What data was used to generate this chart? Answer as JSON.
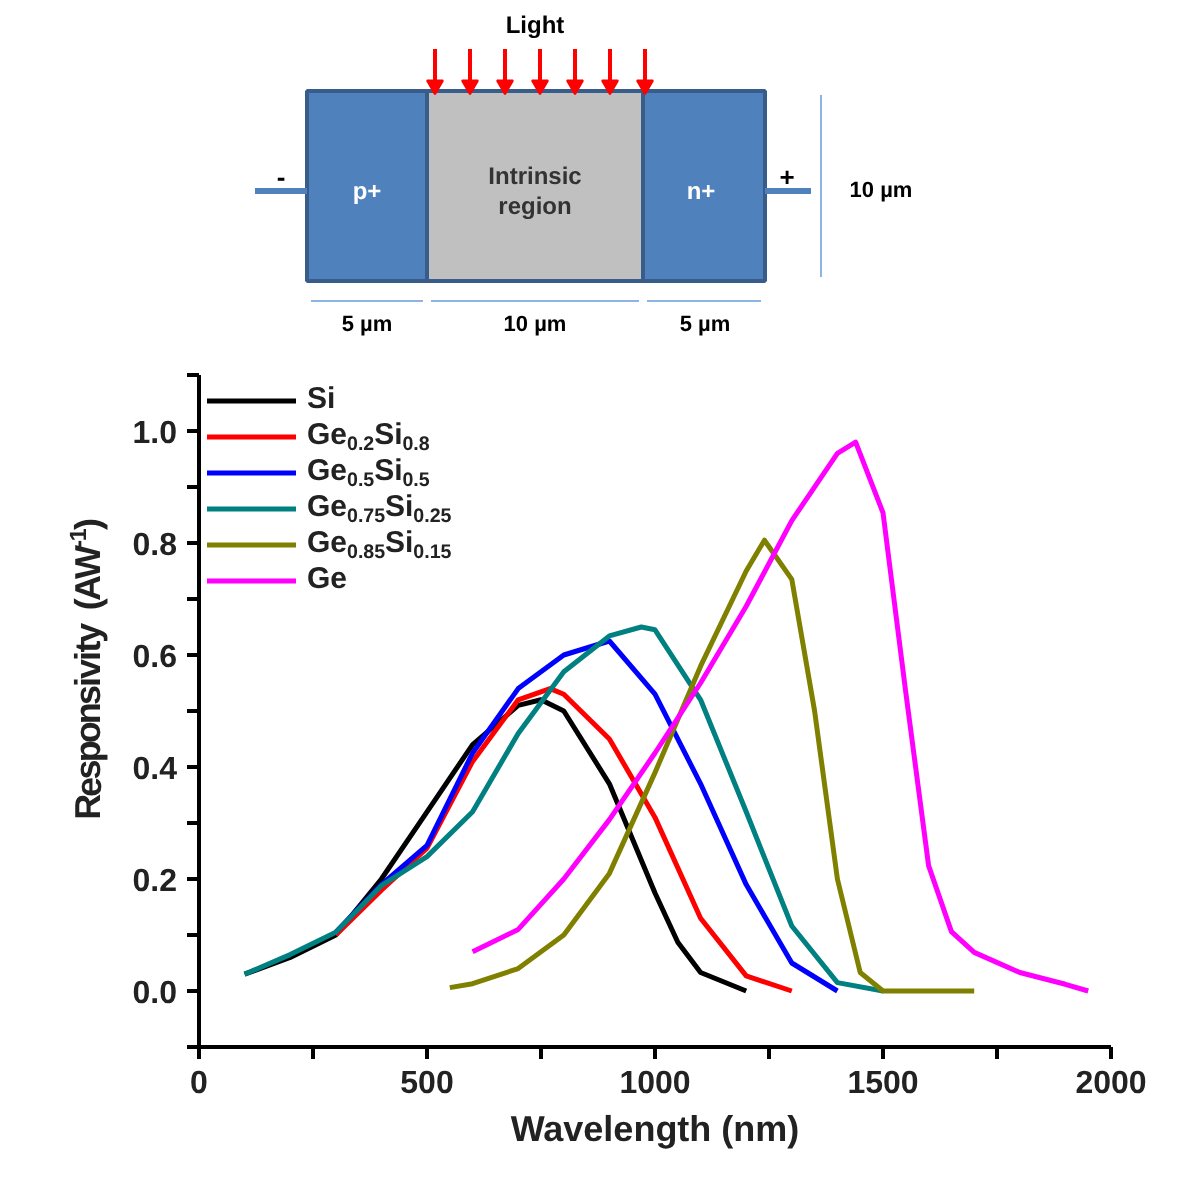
{
  "chart_data": {
    "type": "line",
    "xlabel": "Wavelength (nm)",
    "ylabel": "Responsivity (AW$^{-1}$)",
    "xlim": [
      0,
      2000
    ],
    "ylim": [
      -0.1,
      1.1
    ],
    "xticks": [
      0,
      {
        "value": 250,
        "label": null
      },
      500,
      {
        "value": 750,
        "label": null
      },
      1000,
      {
        "value": 1250,
        "label": null
      },
      1500,
      {
        "value": 1750,
        "label": null
      },
      2000
    ],
    "yticks": [
      {
        "value": -0.1,
        "label": null
      },
      {
        "value": 0,
        "label": "0.0"
      },
      {
        "value": 0.1,
        "label": null
      },
      {
        "value": 0.2,
        "label": "0.2"
      },
      {
        "value": 0.3,
        "label": null
      },
      {
        "value": 0.4,
        "label": "0.4"
      },
      {
        "value": 0.5,
        "label": null
      },
      {
        "value": 0.6,
        "label": "0.6"
      },
      {
        "value": 0.7,
        "label": null
      },
      {
        "value": 0.8,
        "label": "0.8"
      },
      {
        "value": 0.9,
        "label": null
      },
      {
        "value": 1.0,
        "label": "1.0"
      },
      {
        "value": 1.1,
        "label": null
      }
    ],
    "grid": false,
    "legend": "top left",
    "line_style": "solid",
    "annotations": [
      "Light",
      "-",
      "p+",
      "Intrinsic\nregion",
      "n+",
      "+",
      "5 µm",
      "10 µm",
      "5 µm",
      "10 µm"
    ],
    "series": [
      {
        "name": "Si",
        "color": "#000000",
        "x": [
          100,
          200,
          300,
          400,
          500,
          600,
          700,
          750,
          800,
          900,
          1000,
          1050,
          1100,
          1200
        ],
        "values": [
          0.03,
          0.06,
          0.1,
          0.2,
          0.32,
          0.44,
          0.51,
          0.52,
          0.5,
          0.37,
          0.175,
          0.087,
          0.033,
          0.0
        ]
      },
      {
        "name": "Ge$_{0.2}$Si$_{0.8}$",
        "color": "#ff0000",
        "x": [
          300,
          400,
          500,
          600,
          700,
          770,
          800,
          900,
          1000,
          1100,
          1200,
          1300
        ],
        "values": [
          0.1,
          0.18,
          0.255,
          0.41,
          0.52,
          0.54,
          0.53,
          0.45,
          0.31,
          0.13,
          0.027,
          0.0
        ]
      },
      {
        "name": "Ge$_{0.5}$Si$_{0.5}$",
        "color": "#0000ff",
        "x": [
          300,
          400,
          500,
          600,
          700,
          800,
          900,
          1000,
          1100,
          1200,
          1300,
          1400
        ],
        "values": [
          0.105,
          0.19,
          0.26,
          0.425,
          0.54,
          0.6,
          0.625,
          0.53,
          0.37,
          0.19,
          0.05,
          0.0
        ]
      },
      {
        "name": "Ge$_{0.75}$Si$_{0.25}$",
        "color": "#008080",
        "x": [
          100,
          200,
          300,
          400,
          500,
          600,
          700,
          800,
          900,
          970,
          1000,
          1100,
          1200,
          1300,
          1400,
          1500
        ],
        "values": [
          0.03,
          0.065,
          0.105,
          0.188,
          0.24,
          0.32,
          0.46,
          0.57,
          0.634,
          0.65,
          0.645,
          0.52,
          0.32,
          0.116,
          0.015,
          0.0
        ]
      },
      {
        "name": "Ge$_{0.85}$Si$_{0.15}$",
        "color": "#808000",
        "x": [
          550,
          600,
          700,
          800,
          900,
          1000,
          1100,
          1200,
          1240,
          1300,
          1350,
          1400,
          1450,
          1500,
          1700
        ],
        "values": [
          0.006,
          0.013,
          0.04,
          0.1,
          0.21,
          0.39,
          0.58,
          0.75,
          0.805,
          0.735,
          0.5,
          0.2,
          0.033,
          0.0,
          0.0
        ]
      },
      {
        "name": "Ge",
        "color": "#ff00ff",
        "x": [
          600,
          700,
          800,
          900,
          1000,
          1100,
          1200,
          1300,
          1400,
          1440,
          1500,
          1550,
          1600,
          1650,
          1700,
          1800,
          1900,
          1950
        ],
        "values": [
          0.07,
          0.11,
          0.2,
          0.306,
          0.425,
          0.55,
          0.687,
          0.84,
          0.96,
          0.98,
          0.854,
          0.533,
          0.224,
          0.106,
          0.069,
          0.033,
          0.012,
          0.0
        ]
      }
    ]
  }
}
